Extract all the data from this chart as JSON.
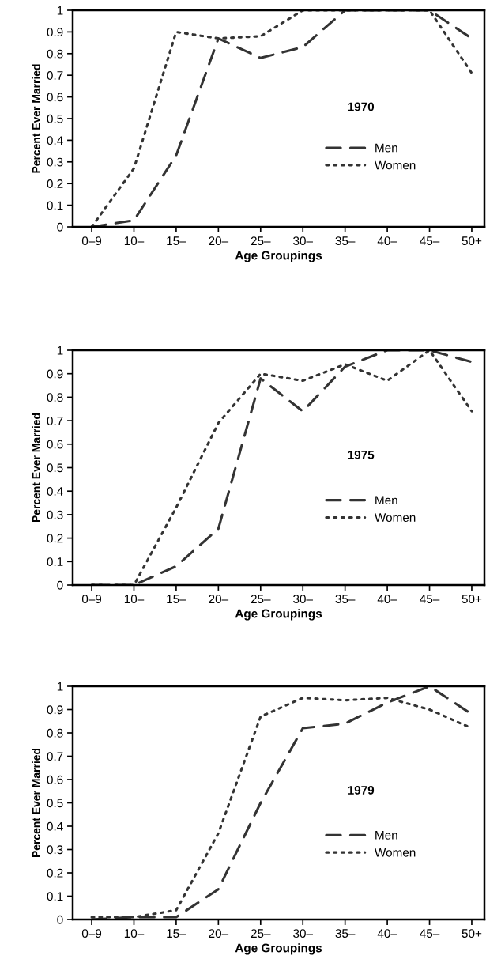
{
  "chart_data": [
    {
      "type": "line",
      "categories": [
        "0–9",
        "10–",
        "15–",
        "20–",
        "25–",
        "30–",
        "35–",
        "40–",
        "45–",
        "50+"
      ],
      "xlabel": "Age Groupings",
      "ylabel": "Percent Ever Married",
      "ylim": [
        0,
        1
      ],
      "yticks": [
        0,
        0.1,
        0.2,
        0.3,
        0.4,
        0.5,
        0.6,
        0.7,
        0.8,
        0.9,
        1
      ],
      "annotations": [
        "1970"
      ],
      "legend": "right",
      "grid": false,
      "series": [
        {
          "name": "Men",
          "color": "#333333",
          "line_style": "dashed",
          "values": [
            0,
            0.03,
            0.33,
            0.87,
            0.78,
            0.83,
            1,
            1,
            1,
            0.87
          ]
        },
        {
          "name": "Women",
          "color": "#333333",
          "line_style": "dotted",
          "values": [
            0,
            0.27,
            0.9,
            0.87,
            0.88,
            1,
            1,
            1,
            1,
            0.71
          ]
        }
      ]
    },
    {
      "type": "line",
      "categories": [
        "0–9",
        "10–",
        "15–",
        "20–",
        "25–",
        "30–",
        "35–",
        "40–",
        "45–",
        "50+"
      ],
      "xlabel": "Age Groupings",
      "ylabel": "Percent Ever Married",
      "ylim": [
        0,
        1
      ],
      "yticks": [
        0,
        0.1,
        0.2,
        0.3,
        0.4,
        0.5,
        0.6,
        0.7,
        0.8,
        0.9,
        1
      ],
      "annotations": [
        "1975"
      ],
      "legend": "right",
      "grid": false,
      "series": [
        {
          "name": "Men",
          "color": "#333333",
          "line_style": "dashed",
          "values": [
            0,
            0,
            0.08,
            0.24,
            0.88,
            0.74,
            0.93,
            1,
            1,
            0.95
          ]
        },
        {
          "name": "Women",
          "color": "#333333",
          "line_style": "dotted",
          "values": [
            0,
            0,
            0.33,
            0.69,
            0.9,
            0.87,
            0.94,
            0.87,
            1,
            0.74
          ]
        }
      ]
    },
    {
      "type": "line",
      "categories": [
        "0–9",
        "10–",
        "15–",
        "20–",
        "25–",
        "30–",
        "35–",
        "40–",
        "45–",
        "50+"
      ],
      "xlabel": "Age Groupings",
      "ylabel": "Percent Ever Married",
      "ylim": [
        0,
        1
      ],
      "yticks": [
        0,
        0.1,
        0.2,
        0.3,
        0.4,
        0.5,
        0.6,
        0.7,
        0.8,
        0.9,
        1
      ],
      "annotations": [
        "1979"
      ],
      "legend": "right",
      "grid": false,
      "series": [
        {
          "name": "Men",
          "color": "#333333",
          "line_style": "dashed",
          "values": [
            0,
            0.01,
            0.01,
            0.13,
            0.5,
            0.82,
            0.84,
            0.93,
            1,
            0.88
          ]
        },
        {
          "name": "Women",
          "color": "#333333",
          "line_style": "dotted",
          "values": [
            0.01,
            0.01,
            0.04,
            0.37,
            0.87,
            0.95,
            0.94,
            0.95,
            0.9,
            0.82
          ]
        }
      ]
    }
  ]
}
